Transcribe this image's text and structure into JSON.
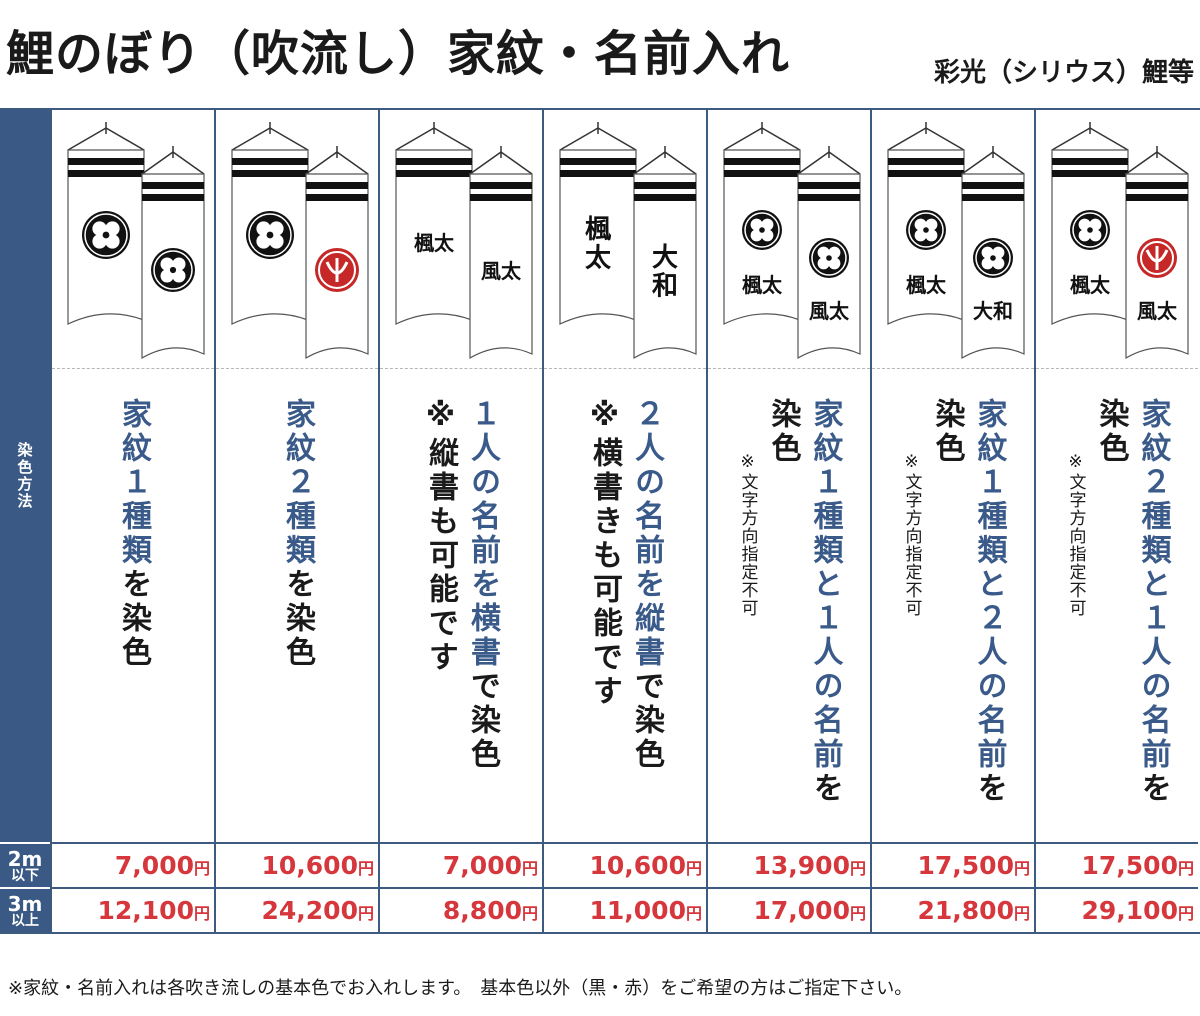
{
  "title": "鯉のぼり（吹流し）家紋・名前入れ",
  "brand": "彩光（シリウス）鯉等",
  "side": {
    "method_label": "染色方法",
    "row1_top": "2m",
    "row1_bottom": "以下",
    "row2_top": "3m",
    "row2_bottom": "以上"
  },
  "yen": "円",
  "columns": [
    {
      "desc_lines": [
        {
          "text": "家紋１種類",
          "rest": "を染色"
        }
      ],
      "note": "",
      "banner_texts": [],
      "price_2m": "7,000",
      "price_3m": "12,100"
    },
    {
      "desc_lines": [
        {
          "text": "家紋２種類",
          "rest": "を染色"
        }
      ],
      "note": "",
      "banner_texts": [],
      "price_2m": "10,600",
      "price_3m": "24,200"
    },
    {
      "desc_lines": [
        {
          "text": "１人の名前を横書",
          "rest": "で染色"
        },
        {
          "text": "",
          "rest": "※縦書も可能です"
        }
      ],
      "note": "",
      "banner_texts": [
        "楓太",
        "風太"
      ],
      "price_2m": "7,000",
      "price_3m": "8,800"
    },
    {
      "desc_lines": [
        {
          "text": "２人の名前を縦書",
          "rest": "で染色"
        },
        {
          "text": "",
          "rest": "※横書きも可能です"
        }
      ],
      "note": "",
      "banner_texts": [
        "楓太",
        "大和"
      ],
      "price_2m": "10,600",
      "price_3m": "11,000"
    },
    {
      "desc_lines": [
        {
          "text": "家紋１種類と１人の名前",
          "rest": "を"
        },
        {
          "text": "",
          "rest": "染色"
        }
      ],
      "note": "※文字方向指定不可",
      "banner_texts": [
        "楓太",
        "風太"
      ],
      "price_2m": "13,900",
      "price_3m": "17,000"
    },
    {
      "desc_lines": [
        {
          "text": "家紋１種類と２人の名前",
          "rest": "を"
        },
        {
          "text": "",
          "rest": "染色"
        }
      ],
      "note": "※文字方向指定不可",
      "banner_texts": [
        "楓太",
        "大和"
      ],
      "price_2m": "17,500",
      "price_3m": "21,800"
    },
    {
      "desc_lines": [
        {
          "text": "家紋２種類と１人の名前",
          "rest": "を"
        },
        {
          "text": "",
          "rest": "染色"
        }
      ],
      "note": "※文字方向指定不可",
      "banner_texts": [
        "楓太",
        "風太"
      ],
      "price_2m": "17,500",
      "price_3m": "29,100"
    }
  ],
  "footer": "※家紋・名前入れは各吹き流しの基本色でお入れします。　基本色以外（黒・赤）をご希望の方はご指定下さい。",
  "colors": {
    "header_blue": "#3a5a85",
    "accent_blue": "#3a5a8a",
    "price_red": "#d6373c",
    "crest_red": "#c62828"
  }
}
